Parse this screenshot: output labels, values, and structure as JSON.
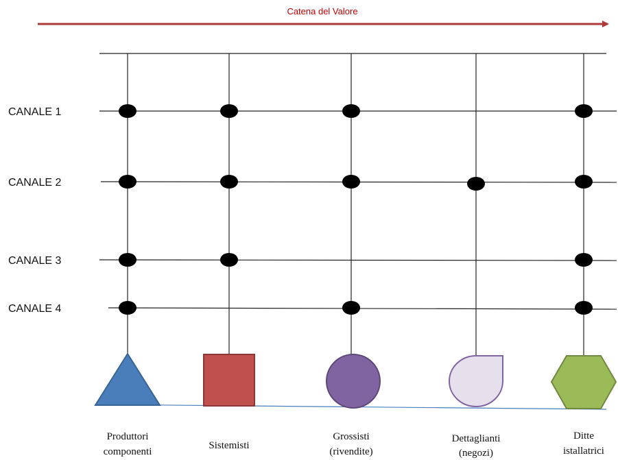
{
  "value_chain": {
    "label": "Catena del Valore",
    "arrow_color": "#b03a3a"
  },
  "channels": [
    {
      "label": "CANALE 1",
      "stops": [
        "Produttori",
        "Sistemisti",
        "Grossisti",
        "Ditte"
      ]
    },
    {
      "label": "CANALE 2",
      "stops": [
        "Produttori",
        "Sistemisti",
        "Grossisti",
        "Dettaglianti",
        "Ditte"
      ]
    },
    {
      "label": "CANALE 3",
      "stops": [
        "Produttori",
        "Sistemisti",
        "Ditte"
      ]
    },
    {
      "label": "CANALE 4",
      "stops": [
        "Produttori",
        "Grossisti",
        "Ditte"
      ]
    }
  ],
  "actors": [
    {
      "key": "Produttori",
      "shape": "triangle",
      "color": "#4a7ebb",
      "stroke": "#3a6496",
      "label_lines": [
        "Produttori",
        "componenti"
      ]
    },
    {
      "key": "Sistemisti",
      "shape": "square",
      "color": "#c0504d",
      "stroke": "#8c3836",
      "label_lines": [
        "Sistemisti"
      ]
    },
    {
      "key": "Grossisti",
      "shape": "circle",
      "color": "#8064a2",
      "stroke": "#5c4776",
      "label_lines": [
        "Grossisti",
        "(rivendite)"
      ]
    },
    {
      "key": "Dettaglianti",
      "shape": "teardrop",
      "color": "#e6e0ec",
      "stroke": "#8064a2",
      "label_lines": [
        "Dettaglianti",
        "(negozi)"
      ]
    },
    {
      "key": "Ditte",
      "shape": "hexagon",
      "color": "#9bbb59",
      "stroke": "#71893f",
      "label_lines": [
        "Ditte",
        "istallatrici"
      ]
    }
  ]
}
